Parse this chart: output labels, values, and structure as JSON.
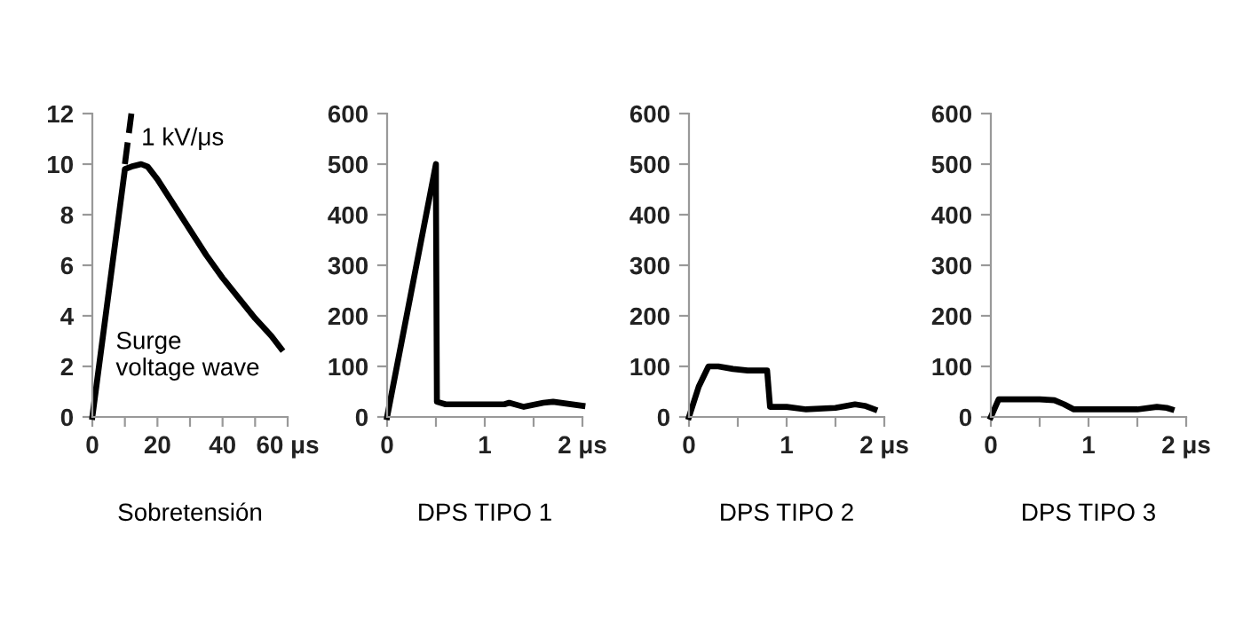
{
  "chart_data": [
    {
      "type": "line",
      "xlabel": "Sobretensión",
      "xlim": [
        0,
        60
      ],
      "ylim": [
        0,
        12
      ],
      "xticks": [
        0,
        {
          "value": 10,
          "label": null
        },
        20,
        {
          "value": 30,
          "label": null
        },
        40,
        {
          "value": 50,
          "label": null
        },
        {
          "value": 60,
          "label": "60 μs"
        }
      ],
      "yticks": [
        0,
        2,
        4,
        6,
        8,
        10,
        12
      ],
      "series": [
        {
          "color": "#000000",
          "line_style": "solid",
          "x": [
            0,
            10,
            12,
            15,
            17,
            20,
            25,
            30,
            35,
            40,
            45,
            50,
            55,
            58
          ],
          "values": [
            0,
            9.8,
            9.9,
            10,
            9.9,
            9.4,
            8.4,
            7.4,
            6.4,
            5.5,
            4.7,
            3.9,
            3.2,
            2.7
          ]
        },
        {
          "color": "#000000",
          "line_style": "dashed",
          "x": [
            10,
            12
          ],
          "values": [
            10,
            12
          ]
        }
      ],
      "annotations": [
        {
          "text": "1 kV/μs",
          "x": 12,
          "y": 11
        },
        "Surge\nvoltage wave"
      ]
    },
    {
      "type": "line",
      "xlabel": "DPS TIPO 1",
      "xlim": [
        0,
        2
      ],
      "ylim": [
        0,
        600
      ],
      "xticks": [
        0,
        {
          "value": 0.5,
          "label": null
        },
        1,
        {
          "value": 1.5,
          "label": null
        },
        {
          "value": 2,
          "label": "2 μs"
        }
      ],
      "yticks": [
        0,
        100,
        200,
        300,
        400,
        500,
        600
      ],
      "series": [
        {
          "color": "#000000",
          "line_style": "solid",
          "x": [
            0,
            0.5,
            0.5,
            0.51,
            0.6,
            0.8,
            1.0,
            1.2,
            1.25,
            1.4,
            1.6,
            1.7,
            2.0
          ],
          "values": [
            0,
            500,
            450,
            30,
            25,
            25,
            25,
            25,
            28,
            20,
            28,
            30,
            22
          ]
        }
      ]
    },
    {
      "type": "line",
      "xlabel": "DPS TIPO 2",
      "xlim": [
        0,
        2
      ],
      "ylim": [
        0,
        600
      ],
      "xticks": [
        0,
        {
          "value": 0.5,
          "label": null
        },
        1,
        {
          "value": 1.5,
          "label": null
        },
        {
          "value": 2,
          "label": "2 μs"
        }
      ],
      "yticks": [
        0,
        100,
        200,
        300,
        400,
        500,
        600
      ],
      "series": [
        {
          "color": "#000000",
          "line_style": "solid",
          "x": [
            0,
            0.1,
            0.2,
            0.3,
            0.45,
            0.6,
            0.8,
            0.83,
            0.9,
            1.0,
            1.2,
            1.5,
            1.7,
            1.8,
            1.9
          ],
          "values": [
            0,
            60,
            100,
            100,
            95,
            92,
            92,
            20,
            20,
            20,
            15,
            18,
            25,
            22,
            15
          ]
        }
      ]
    },
    {
      "type": "line",
      "xlabel": "DPS TIPO 3",
      "xlim": [
        0,
        2
      ],
      "ylim": [
        0,
        600
      ],
      "xticks": [
        0,
        {
          "value": 0.5,
          "label": null
        },
        1,
        {
          "value": 1.5,
          "label": null
        },
        {
          "value": 2,
          "label": "2 μs"
        }
      ],
      "yticks": [
        0,
        100,
        200,
        300,
        400,
        500,
        600
      ],
      "series": [
        {
          "color": "#000000",
          "line_style": "solid",
          "x": [
            0,
            0.08,
            0.5,
            0.65,
            0.75,
            0.85,
            1.0,
            1.5,
            1.7,
            1.8,
            1.85
          ],
          "values": [
            0,
            35,
            35,
            33,
            25,
            15,
            15,
            15,
            20,
            18,
            15
          ]
        }
      ]
    }
  ]
}
